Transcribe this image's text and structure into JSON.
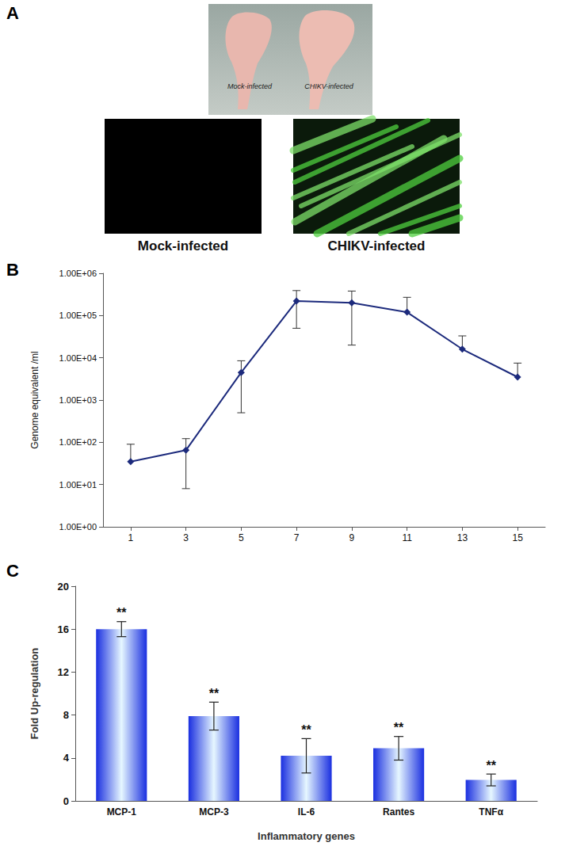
{
  "panel_labels": [
    "A",
    "B",
    "C"
  ],
  "panel_a": {
    "photo_labels": [
      "Mock-infected",
      "CHIKV-infected"
    ],
    "image_labels": [
      "Mock-infected",
      "CHIKV-infected"
    ]
  },
  "chart_data": [
    {
      "type": "line",
      "categories": [
        1,
        3,
        5,
        7,
        9,
        11,
        13,
        15
      ],
      "values": [
        35,
        65,
        4500,
        220000,
        200000,
        120000,
        16000,
        3500
      ],
      "errors": [
        55,
        57,
        4000,
        170000,
        180000,
        150000,
        17000,
        4000
      ],
      "color": "#1c2a7c",
      "marker": "diamond",
      "log": "y",
      "grid": false,
      "ylim": [
        1,
        1000000
      ],
      "yticks": [
        {
          "value": 1,
          "label": "1.00E+00"
        },
        {
          "value": 10,
          "label": "1.00E+01"
        },
        {
          "value": 100,
          "label": "1.00E+02"
        },
        {
          "value": 1000,
          "label": "1.00E+03"
        },
        {
          "value": 10000,
          "label": "1.00E+04"
        },
        {
          "value": 100000,
          "label": "1.00E+05"
        },
        {
          "value": 1000000,
          "label": "1.00E+06"
        }
      ],
      "y_label": "Genome equivalent /ml"
    },
    {
      "type": "bar",
      "categories": [
        "MCP-1",
        "MCP-3",
        "IL-6",
        "Rantes",
        "TNFα"
      ],
      "values": [
        16,
        7.9,
        4.2,
        4.9,
        1.95
      ],
      "errors": [
        0.7,
        1.3,
        1.6,
        1.1,
        0.55
      ],
      "annotations": [
        "**",
        "**",
        "**",
        "**",
        "**"
      ],
      "color": "#1a2fe0",
      "grid": false,
      "ylim": [
        0,
        20
      ],
      "yticks": [
        0,
        4,
        8,
        12,
        16,
        20
      ],
      "x_label": "Inflammatory genes",
      "y_label": "Fold Up-regulation"
    }
  ]
}
